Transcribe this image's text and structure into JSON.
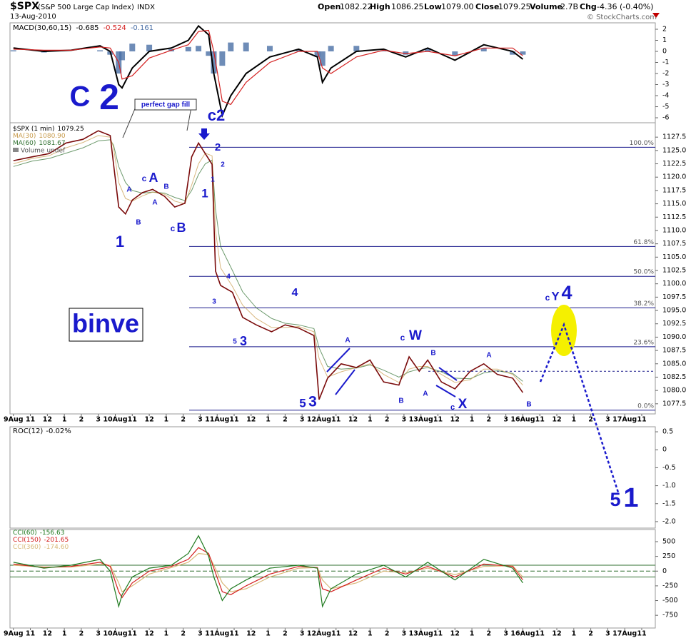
{
  "header": {
    "symbol": "$SPX",
    "name": "(S&P 500 Large Cap Index)",
    "exchange": "INDX",
    "date": "13-Aug-2010",
    "quote": [
      {
        "label": "Open",
        "value": "1082.22"
      },
      {
        "label": "High",
        "value": "1086.25"
      },
      {
        "label": "Low",
        "value": "1079.00"
      },
      {
        "label": "Close",
        "value": "1079.25"
      },
      {
        "label": "Volume",
        "value": "2.7B"
      },
      {
        "label": "Chg",
        "value": "-4.36 (-0.40%)"
      }
    ],
    "credit": "© StockCharts.com"
  },
  "annotations": [
    "C",
    "2",
    "perfect gap fill",
    "c2",
    "2",
    "2",
    "1",
    "1",
    "c",
    "A",
    "A",
    "B",
    "A",
    "B",
    "c",
    "B",
    "1",
    "binve",
    "4",
    "3",
    "4",
    "5",
    "3",
    "A",
    "c",
    "W",
    "B",
    "A",
    "A",
    "B",
    "c",
    "X",
    "B",
    "5",
    "3",
    "c",
    "Y",
    "4",
    "5",
    "1"
  ],
  "chart_data": [
    {
      "type": "macd",
      "title": "MACD(30,60,15)",
      "x": [
        0,
        1.8,
        3.4,
        5.1,
        5.7,
        6.2,
        6.4,
        7.0,
        8.0,
        9.3,
        10.3,
        10.9,
        11.5,
        11.8,
        12.3,
        12.8,
        13.7,
        15.1,
        16.8,
        17.9,
        18.2,
        18.7,
        20.2,
        21.8,
        23.1,
        24.4,
        26.0,
        27.7,
        29.4,
        30.0
      ],
      "series": [
        {
          "color": "#000000",
          "last_label": "-0.685",
          "values": [
            0.3,
            0,
            0.1,
            0.5,
            0,
            -3,
            -3.3,
            -1.5,
            0,
            0.3,
            1,
            2.3,
            1.5,
            -2,
            -5.8,
            -4,
            -2,
            -0.5,
            0.2,
            -0.5,
            -2.8,
            -1.5,
            0,
            0.2,
            -0.5,
            0.3,
            -0.8,
            0.6,
            0,
            -0.7
          ]
        },
        {
          "color": "#d42020",
          "last_label": "-0.524",
          "values": [
            0.2,
            0.1,
            0.1,
            0.4,
            0.3,
            -1,
            -2.5,
            -2.2,
            -0.6,
            0.1,
            0.6,
            1.8,
            1.9,
            0,
            -4.5,
            -4.8,
            -2.8,
            -1,
            0,
            0,
            -1.5,
            -2,
            -0.5,
            0.1,
            -0.2,
            0,
            -0.4,
            0.3,
            0.3,
            -0.4
          ]
        },
        {
          "color": "#4a6fa5",
          "last_label": "-0.161",
          "style": "histogram",
          "values": [
            0.1,
            -0.1,
            0,
            0.1,
            -0.3,
            -2,
            -0.8,
            0.7,
            0.6,
            0.2,
            0.4,
            0.5,
            -0.4,
            -2,
            -1.3,
            0.8,
            0.8,
            0.5,
            0.2,
            -0.5,
            -1.3,
            0.5,
            0.5,
            0.1,
            -0.3,
            0.3,
            -0.4,
            0.3,
            -0.3,
            -0.3
          ]
        }
      ],
      "xlim": [
        -0.2,
        37.8
      ],
      "ylim": [
        -6.45,
        2.58
      ],
      "yticks": [
        2,
        1,
        0,
        -1,
        -2,
        -3,
        -4,
        -5,
        -6
      ]
    },
    {
      "type": "line",
      "note": "Volume undef",
      "x": [
        0,
        1.1,
        2.1,
        3.1,
        4.1,
        5.0,
        5.7,
        5.9,
        6.2,
        6.6,
        7.0,
        7.6,
        8.2,
        8.9,
        9.5,
        10.1,
        10.5,
        10.9,
        11.3,
        11.7,
        11.9,
        12.2,
        12.9,
        13.5,
        14.3,
        15.2,
        16.0,
        16.8,
        17.7,
        18.0,
        18.5,
        19.3,
        20.2,
        21.0,
        21.8,
        22.7,
        23.3,
        23.9,
        24.4,
        25.2,
        26.0,
        26.9,
        27.7,
        28.5,
        29.4,
        30.0
      ],
      "series": [
        {
          "name": "$SPX (1 min)",
          "color": "#7a0a0a",
          "last_label": "1079.25",
          "values": [
            1123.1,
            1123.8,
            1124.4,
            1126.4,
            1127.1,
            1128.7,
            1127.8,
            1122.4,
            1114.4,
            1113.1,
            1115.7,
            1117.1,
            1117.7,
            1116.4,
            1114.4,
            1115.1,
            1123.8,
            1126.4,
            1124.4,
            1122.4,
            1102.4,
            1099.7,
            1098.4,
            1093.7,
            1092.3,
            1091.0,
            1092.3,
            1091.7,
            1090.3,
            1078.3,
            1082.3,
            1085.0,
            1084.3,
            1085.7,
            1081.6,
            1081.0,
            1086.3,
            1083.6,
            1085.7,
            1081.6,
            1080.3,
            1083.6,
            1085.0,
            1083.0,
            1082.3,
            1079.6
          ]
        },
        {
          "name": "MA(30)",
          "color": "#c79a4a",
          "last_label": "1080.90",
          "values": [
            1122.5,
            1123.5,
            1124.0,
            1125.5,
            1126.5,
            1127.8,
            1127.5,
            1125.5,
            1119.0,
            1116.0,
            1115.5,
            1116.5,
            1117.2,
            1116.8,
            1115.5,
            1115.0,
            1118.5,
            1122.5,
            1124.5,
            1124.0,
            1110.0,
            1103.0,
            1099.5,
            1096.0,
            1093.5,
            1091.8,
            1091.8,
            1092.0,
            1091.0,
            1086.0,
            1082.5,
            1083.5,
            1084.3,
            1085.0,
            1083.0,
            1081.5,
            1084.0,
            1084.5,
            1084.5,
            1083.0,
            1081.5,
            1082.0,
            1084.0,
            1084.0,
            1083.0,
            1081.0
          ]
        },
        {
          "name": "MA(60)",
          "color": "#2f6f2f",
          "last_label": "1081.67",
          "values": [
            1122,
            1123,
            1123.5,
            1124.5,
            1125.5,
            1126.8,
            1127,
            1126,
            1122,
            1119,
            1117.5,
            1117,
            1117.2,
            1117,
            1116.2,
            1115.6,
            1117.5,
            1120.5,
            1122.5,
            1123.2,
            1114,
            1107,
            1102.5,
            1098.5,
            1095.5,
            1093.5,
            1092.6,
            1092.3,
            1091.6,
            1088,
            1084.5,
            1084,
            1084.2,
            1084.8,
            1083.8,
            1082.5,
            1083.5,
            1084,
            1084.3,
            1083.5,
            1082.3,
            1082.2,
            1083.3,
            1083.7,
            1083.2,
            1081.7
          ]
        }
      ],
      "fib_levels": [
        {
          "label": "100.0%",
          "value": 1125.6
        },
        {
          "label": "61.8%",
          "value": 1107.0
        },
        {
          "label": "50.0%",
          "value": 1101.4
        },
        {
          "label": "38.2%",
          "value": 1095.5
        },
        {
          "label": "23.6%",
          "value": 1088.2
        },
        {
          "label": "0.0%",
          "value": 1076.3
        }
      ],
      "dashed_level": 1083.6,
      "xlim": [
        -0.2,
        37.8
      ],
      "ylim": [
        1075.6,
        1130.2
      ],
      "yticks": [
        1127.5,
        {
          "value": 1125,
          "label": "1125.0"
        },
        1122.5,
        {
          "value": 1120,
          "label": "1120.0"
        },
        1117.5,
        {
          "value": 1115,
          "label": "1115.0"
        },
        1112.5,
        {
          "value": 1110,
          "label": "1110.0"
        },
        1107.5,
        {
          "value": 1105,
          "label": "1105.0"
        },
        1102.5,
        {
          "value": 1100,
          "label": "1100.0"
        },
        1097.5,
        {
          "value": 1095,
          "label": "1095.0"
        },
        1092.5,
        {
          "value": 1090,
          "label": "1090.0"
        },
        1087.5,
        {
          "value": 1085,
          "label": "1085.0"
        },
        1082.5,
        {
          "value": 1080,
          "label": "1080.0"
        },
        1077.5
      ],
      "xticks": [
        {
          "value": 0,
          "label": "9Aug"
        },
        {
          "value": 1,
          "label": "11"
        },
        {
          "value": 2,
          "label": "12"
        },
        {
          "value": 3,
          "label": "1"
        },
        {
          "value": 4,
          "label": "2"
        },
        {
          "value": 5,
          "label": "3"
        },
        {
          "value": 6,
          "label": "10Aug"
        },
        {
          "value": 7,
          "label": "11"
        },
        {
          "value": 8,
          "label": "12"
        },
        {
          "value": 9,
          "label": "1"
        },
        {
          "value": 10,
          "label": "2"
        },
        {
          "value": 11,
          "label": "3"
        },
        {
          "value": 12,
          "label": "11Aug"
        },
        {
          "value": 13,
          "label": "11"
        },
        {
          "value": 14,
          "label": "12"
        },
        {
          "value": 15,
          "label": "1"
        },
        {
          "value": 16,
          "label": "2"
        },
        {
          "value": 17,
          "label": "3"
        },
        {
          "value": 18,
          "label": "12Aug"
        },
        {
          "value": 19,
          "label": "11"
        },
        {
          "value": 20,
          "label": "12"
        },
        {
          "value": 21,
          "label": "1"
        },
        {
          "value": 22,
          "label": "2"
        },
        {
          "value": 23,
          "label": "3"
        },
        {
          "value": 24,
          "label": "13Aug"
        },
        {
          "value": 25,
          "label": "11"
        },
        {
          "value": 26,
          "label": "12"
        },
        {
          "value": 27,
          "label": "1"
        },
        {
          "value": 28,
          "label": "2"
        },
        {
          "value": 29,
          "label": "3"
        },
        {
          "value": 30,
          "label": "16Aug"
        },
        {
          "value": 31,
          "label": "11"
        },
        {
          "value": 32,
          "label": "12"
        },
        {
          "value": 33,
          "label": "1"
        },
        {
          "value": 34,
          "label": "2"
        },
        {
          "value": 35,
          "label": "3"
        },
        {
          "value": 36,
          "label": "17Aug"
        },
        {
          "value": 37,
          "label": "11"
        }
      ]
    },
    {
      "type": "empty",
      "title": "ROC(12)",
      "last_label": "-0.02%",
      "xlim": [
        -0.2,
        37.8
      ],
      "ylim": [
        -2.18,
        0.64
      ],
      "yticks": [
        0.5,
        0,
        -0.5,
        {
          "value": -1,
          "label": "-1.0"
        },
        -1.5,
        {
          "value": -2,
          "label": "-2.0"
        }
      ]
    },
    {
      "type": "line",
      "x": [
        0,
        1.8,
        3.4,
        5.1,
        5.7,
        6.2,
        6.4,
        7.0,
        8.0,
        9.3,
        10.3,
        10.9,
        11.5,
        11.8,
        12.3,
        12.8,
        13.7,
        15.1,
        16.8,
        17.9,
        18.2,
        18.7,
        20.2,
        21.8,
        23.1,
        24.4,
        26.0,
        27.7,
        29.4,
        30.0
      ],
      "series": [
        {
          "name": "CCI(360)",
          "color": "#d8b878",
          "last_label": "-174.60",
          "values": [
            100,
            70,
            70,
            120,
            100,
            -200,
            -350,
            -250,
            -50,
            60,
            150,
            300,
            280,
            100,
            -200,
            -350,
            -300,
            -100,
            50,
            60,
            -150,
            -300,
            -200,
            0,
            -30,
            50,
            -60,
            80,
            90,
            -100
          ]
        },
        {
          "name": "CCI(150)",
          "color": "#d42020",
          "last_label": "-201.65",
          "values": [
            120,
            60,
            80,
            150,
            80,
            -350,
            -450,
            -200,
            0,
            80,
            200,
            400,
            300,
            50,
            -350,
            -400,
            -250,
            -50,
            80,
            60,
            -300,
            -350,
            -150,
            50,
            -50,
            80,
            -100,
            120,
            80,
            -150
          ]
        },
        {
          "name": "CCI(60)",
          "color": "#1f7a1f",
          "last_label": "-156.63",
          "values": [
            150,
            50,
            100,
            200,
            0,
            -600,
            -400,
            -100,
            50,
            100,
            300,
            600,
            250,
            -100,
            -500,
            -300,
            -150,
            50,
            100,
            50,
            -600,
            -300,
            -50,
            100,
            -100,
            150,
            -150,
            200,
            50,
            -200
          ]
        }
      ],
      "reference_lines": [
        100,
        -100
      ],
      "zero_line": 0,
      "xlim": [
        -0.2,
        37.8
      ],
      "ylim": [
        -966,
        706
      ],
      "yticks": [
        500,
        250,
        0,
        -250,
        -500,
        -750
      ]
    }
  ]
}
